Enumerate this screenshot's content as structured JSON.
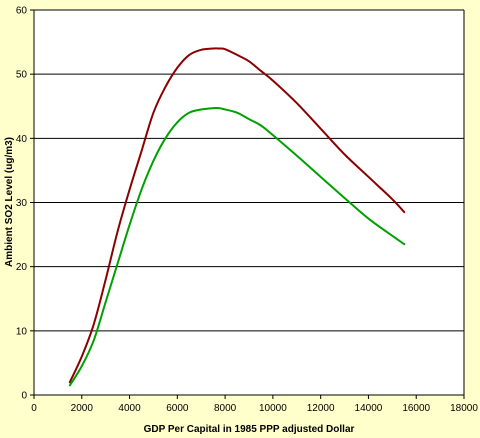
{
  "chart_data": {
    "type": "line",
    "title": "",
    "xlabel": "GDP Per Capital in 1985 PPP adjusted Dollar",
    "ylabel": "Ambient SO2 Level (ug/m3)",
    "xlim": [
      0,
      18000
    ],
    "ylim": [
      0,
      60
    ],
    "x_ticks": [
      "0",
      "2000",
      "4000",
      "6000",
      "8000",
      "10000",
      "12000",
      "14000",
      "16000",
      "18000"
    ],
    "y_ticks": [
      "0",
      "10",
      "20",
      "30",
      "40",
      "50",
      "60"
    ],
    "grid": "horizontal",
    "legend": "none",
    "series": [
      {
        "color": "#8b0000",
        "x": [
          1500,
          2000,
          2500,
          3000,
          3500,
          4000,
          4500,
          5000,
          5500,
          6000,
          6500,
          7000,
          7500,
          7750,
          8000,
          8500,
          9000,
          9500,
          10000,
          11000,
          12000,
          13000,
          14000,
          15000,
          15500
        ],
        "y": [
          2,
          6,
          11,
          18,
          25.5,
          32,
          38,
          44,
          48,
          51,
          53,
          53.8,
          54,
          54,
          53.9,
          53,
          52,
          50.5,
          49,
          45.5,
          41.5,
          37.5,
          34,
          30.5,
          28.5
        ]
      },
      {
        "color": "#00a000",
        "x": [
          1500,
          2000,
          2500,
          3000,
          3500,
          4000,
          4500,
          5000,
          5500,
          6000,
          6500,
          7000,
          7500,
          7750,
          8000,
          8500,
          9000,
          9500,
          10000,
          11000,
          12000,
          13000,
          14000,
          15000,
          15500
        ],
        "y": [
          1.5,
          4.5,
          8.5,
          14.5,
          20.5,
          26.5,
          32,
          36.5,
          40,
          42.5,
          44,
          44.5,
          44.7,
          44.7,
          44.5,
          44,
          43,
          42,
          40.5,
          37.3,
          34,
          30.7,
          27.5,
          24.8,
          23.5
        ]
      }
    ]
  }
}
